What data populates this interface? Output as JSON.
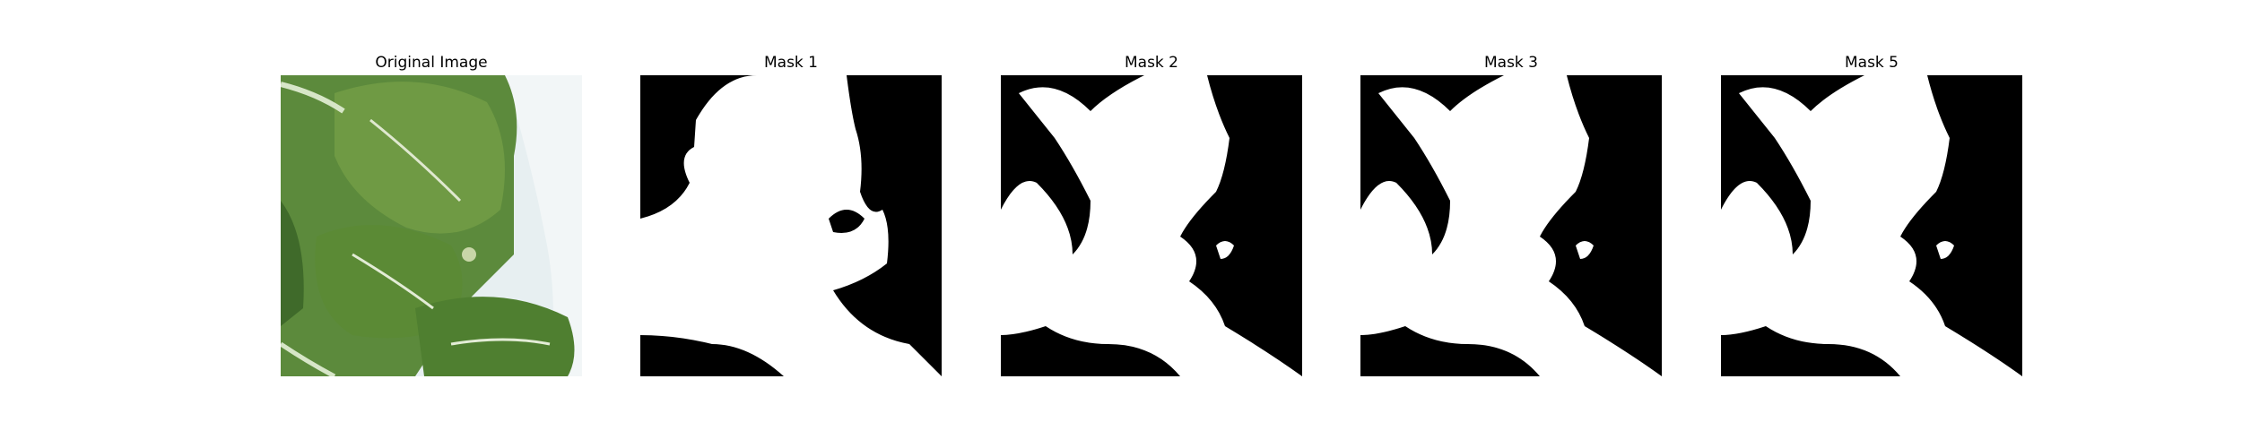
{
  "panels": [
    {
      "title": "Original Image"
    },
    {
      "title": "Mask 1"
    },
    {
      "title": "Mask 2"
    },
    {
      "title": "Mask 3"
    },
    {
      "title": "Mask 5"
    }
  ],
  "colors": {
    "mask_foreground": "#ffffff",
    "mask_background": "#000000",
    "leaf_green": "#5f8a3f",
    "leaf_dark": "#3f6a2a",
    "backdrop": "#e6eef0"
  }
}
